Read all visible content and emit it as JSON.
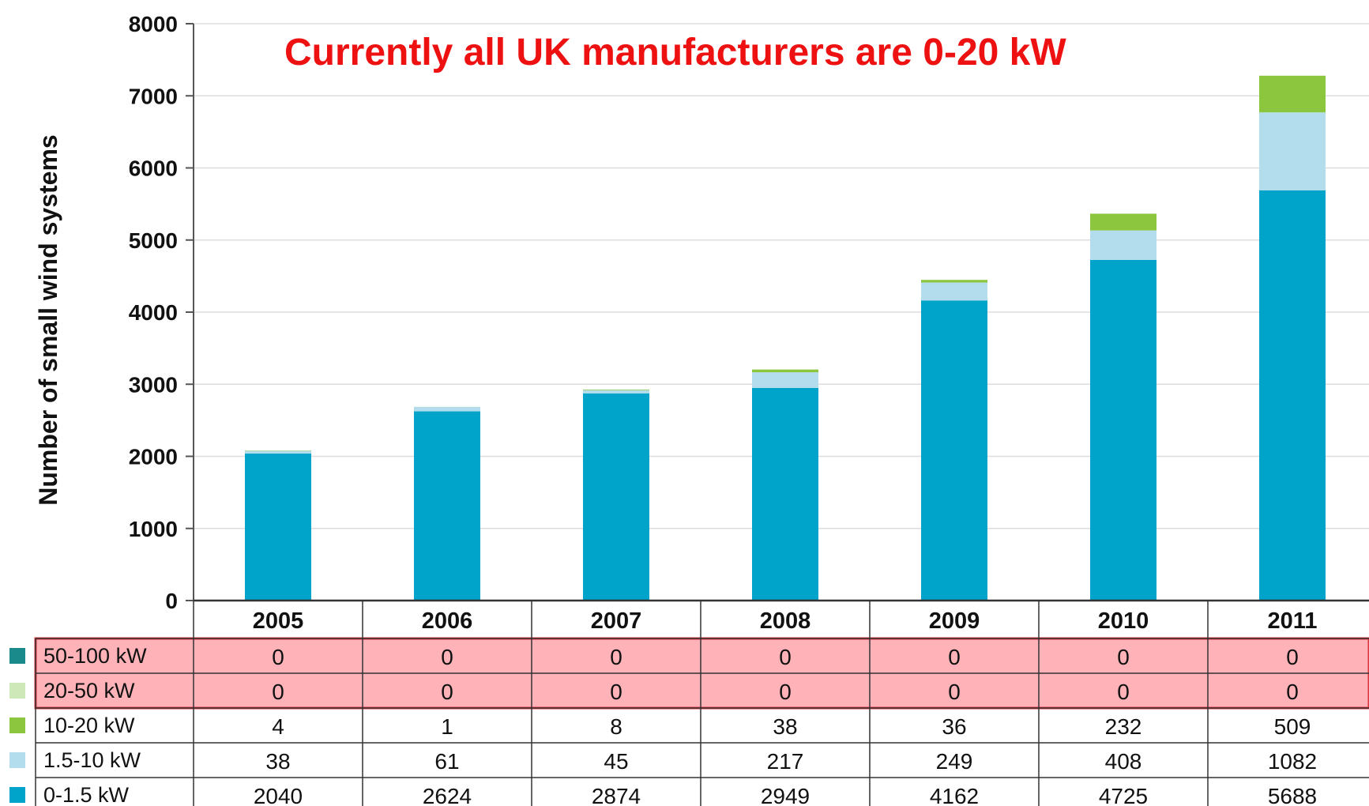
{
  "chart_data": {
    "type": "bar",
    "stacked": true,
    "ylabel": "Number of small wind systems",
    "ylim": [
      0,
      8000
    ],
    "yticks": [
      0,
      1000,
      2000,
      3000,
      4000,
      5000,
      6000,
      7000,
      8000
    ],
    "grid": true,
    "annotation": "Currently all UK manufacturers are 0-20 kW",
    "categories": [
      "2005",
      "2006",
      "2007",
      "2008",
      "2009",
      "2010",
      "2011"
    ],
    "series": [
      {
        "name": "50-100 kW",
        "color": "#1a8a8a",
        "values": [
          0,
          0,
          0,
          0,
          0,
          0,
          0
        ]
      },
      {
        "name": "20-50 kW",
        "color": "#cfe8b8",
        "values": [
          0,
          0,
          0,
          0,
          0,
          0,
          0
        ]
      },
      {
        "name": "10-20 kW",
        "color": "#8cc63f",
        "values": [
          4,
          1,
          8,
          38,
          36,
          232,
          509
        ]
      },
      {
        "name": "1.5-10 kW",
        "color": "#b3dcec",
        "values": [
          38,
          61,
          45,
          217,
          249,
          408,
          1082
        ]
      },
      {
        "name": "0-1.5 kW",
        "color": "#00a3c9",
        "values": [
          2040,
          2624,
          2874,
          2949,
          4162,
          4725,
          5688
        ]
      }
    ],
    "highlighted_rows": [
      "50-100 kW",
      "20-50 kW"
    ],
    "highlight_color": "#ffb3b8"
  }
}
